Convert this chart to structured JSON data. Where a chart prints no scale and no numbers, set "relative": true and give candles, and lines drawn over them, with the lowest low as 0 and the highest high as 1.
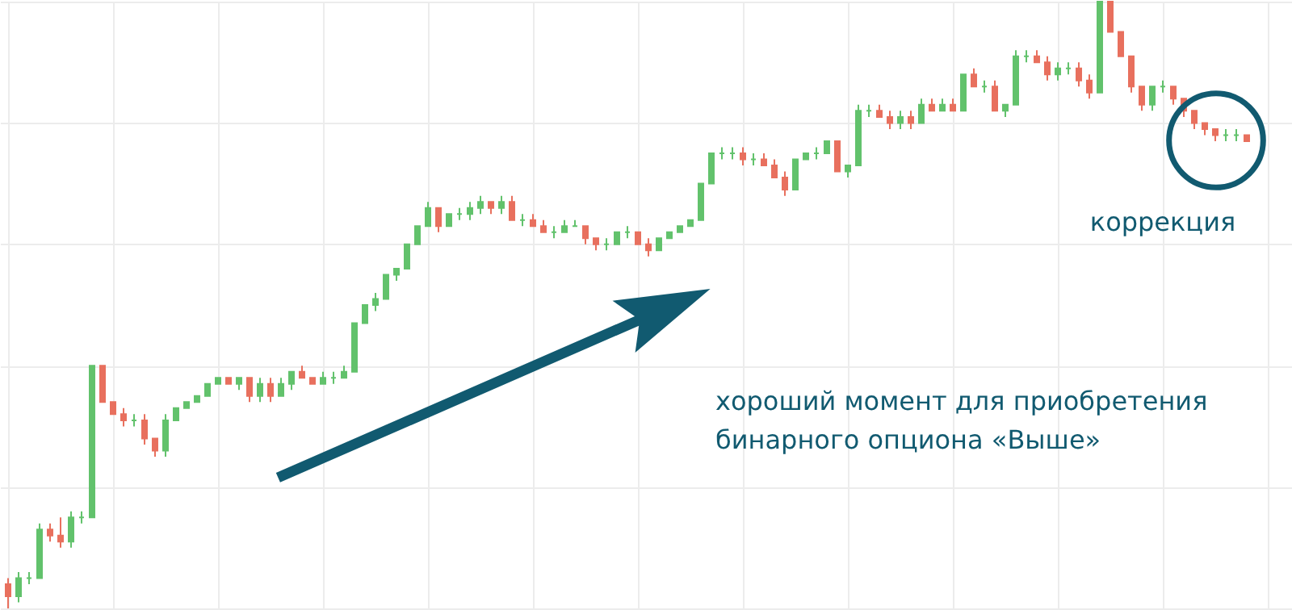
{
  "chart_data": {
    "type": "candlestick",
    "relative": true,
    "grid": true,
    "colors": [
      "#e8705e",
      "#62c26c",
      "#62c26c",
      "#62c26c",
      "#e8705e",
      "#e8705e",
      "#62c26c",
      "#62c26c",
      "#62c26c",
      "#e8705e",
      "#e8705e",
      "#e8705e",
      "#62c26c",
      "#e8705e",
      "#e8705e",
      "#62c26c",
      "#62c26c",
      "#62c26c",
      "#62c26c",
      "#62c26c",
      "#62c26c",
      "#e8705e",
      "#62c26c",
      "#e8705e",
      "#62c26c",
      "#e8705e",
      "#62c26c",
      "#62c26c",
      "#e8705e",
      "#e8705e",
      "#62c26c",
      "#62c26c",
      "#62c26c",
      "#62c26c",
      "#62c26c",
      "#62c26c",
      "#62c26c",
      "#62c26c",
      "#62c26c",
      "#62c26c",
      "#62c26c",
      "#e8705e",
      "#62c26c",
      "#62c26c",
      "#62c26c",
      "#62c26c",
      "#e8705e",
      "#62c26c",
      "#e8705e",
      "#62c26c",
      "#e8705e",
      "#e8705e",
      "#62c26c",
      "#62c26c",
      "#62c26c",
      "#e8705e",
      "#e8705e",
      "#62c26c",
      "#62c26c",
      "#62c26c",
      "#e8705e",
      "#e8705e",
      "#62c26c",
      "#62c26c",
      "#62c26c",
      "#62c26c",
      "#62c26c",
      "#62c26c",
      "#62c26c",
      "#62c26c",
      "#e8705e",
      "#62c26c",
      "#e8705e",
      "#e8705e",
      "#e8705e",
      "#62c26c",
      "#62c26c",
      "#62c26c",
      "#62c26c",
      "#e8705e",
      "#62c26c",
      "#62c26c",
      "#62c26c",
      "#e8705e",
      "#e8705e",
      "#62c26c",
      "#e8705e",
      "#62c26c",
      "#e8705e",
      "#62c26c",
      "#e8705e",
      "#62c26c",
      "#e8705e",
      "#62c26c",
      "#e8705e",
      "#62c26c",
      "#62c26c",
      "#62c26c",
      "#e8705e",
      "#e8705e",
      "#62c26c",
      "#62c26c",
      "#e8705e",
      "#e8705e",
      "#62c26c",
      "#e8705e",
      "#e8705e",
      "#e8705e",
      "#e8705e",
      "#62c26c",
      "#62c26c",
      "#e8705e",
      "#e8705e",
      "#e8705e",
      "#e8705e",
      "#e8705e",
      "#62c26c",
      "#62c26c",
      "#e8705e"
    ],
    "categories": [
      null,
      null,
      null,
      null,
      null,
      null,
      null,
      null,
      null,
      null,
      null,
      null,
      null,
      null,
      null,
      null,
      null,
      null,
      null,
      null,
      null,
      null,
      null,
      null,
      null,
      null,
      null,
      null,
      null,
      null,
      null,
      null,
      null,
      null,
      null,
      null,
      null,
      null,
      null,
      null,
      null,
      null,
      null,
      null,
      null,
      null,
      null,
      null,
      null,
      null,
      null,
      null,
      null,
      null,
      null,
      null,
      null,
      null,
      null,
      null,
      null,
      null,
      null,
      null,
      null,
      null,
      null,
      null,
      null,
      null,
      null,
      null,
      null,
      null,
      null,
      null,
      null,
      null,
      null,
      null,
      null,
      null,
      null,
      null,
      null,
      null,
      null,
      null,
      null,
      null,
      null,
      null,
      null,
      null,
      null,
      null,
      null,
      null,
      null,
      null,
      null,
      null,
      null,
      null,
      null,
      null,
      null,
      null,
      null,
      null,
      null,
      null,
      null,
      null,
      null,
      null,
      null,
      null,
      null
    ],
    "ohlc": [
      [
        0.04,
        0.05,
        0,
        0.02
      ],
      [
        0.02,
        0.06,
        0.01,
        0.05
      ],
      [
        0.05,
        0.06,
        0.04,
        0.05
      ],
      [
        0.05,
        0.14,
        0.05,
        0.13
      ],
      [
        0.13,
        0.14,
        0.11,
        0.12
      ],
      [
        0.12,
        0.15,
        0.1,
        0.11
      ],
      [
        0.11,
        0.16,
        0.1,
        0.15
      ],
      [
        0.15,
        0.16,
        0.14,
        0.15
      ],
      [
        0.15,
        0.4,
        0.15,
        0.4
      ],
      [
        0.4,
        0.4,
        0.34,
        0.34
      ],
      [
        0.34,
        0.34,
        0.32,
        0.32
      ],
      [
        0.32,
        0.33,
        0.3,
        0.31
      ],
      [
        0.31,
        0.32,
        0.3,
        0.31
      ],
      [
        0.31,
        0.32,
        0.27,
        0.28
      ],
      [
        0.28,
        0.28,
        0.25,
        0.26
      ],
      [
        0.26,
        0.32,
        0.25,
        0.31
      ],
      [
        0.31,
        0.33,
        0.31,
        0.33
      ],
      [
        0.33,
        0.34,
        0.33,
        0.34
      ],
      [
        0.34,
        0.35,
        0.34,
        0.35
      ],
      [
        0.35,
        0.37,
        0.35,
        0.37
      ],
      [
        0.37,
        0.38,
        0.37,
        0.38
      ],
      [
        0.38,
        0.38,
        0.37,
        0.37
      ],
      [
        0.37,
        0.38,
        0.36,
        0.38
      ],
      [
        0.38,
        0.38,
        0.34,
        0.35
      ],
      [
        0.35,
        0.38,
        0.34,
        0.37
      ],
      [
        0.37,
        0.38,
        0.34,
        0.35
      ],
      [
        0.35,
        0.38,
        0.35,
        0.37
      ],
      [
        0.37,
        0.39,
        0.36,
        0.39
      ],
      [
        0.39,
        0.4,
        0.38,
        0.38
      ],
      [
        0.38,
        0.38,
        0.37,
        0.37
      ],
      [
        0.37,
        0.39,
        0.37,
        0.38
      ],
      [
        0.38,
        0.39,
        0.37,
        0.38
      ],
      [
        0.38,
        0.4,
        0.38,
        0.39
      ],
      [
        0.39,
        0.47,
        0.39,
        0.47
      ],
      [
        0.47,
        0.5,
        0.47,
        0.5
      ],
      [
        0.5,
        0.52,
        0.49,
        0.51
      ],
      [
        0.51,
        0.55,
        0.51,
        0.55
      ],
      [
        0.55,
        0.56,
        0.54,
        0.56
      ],
      [
        0.56,
        0.6,
        0.56,
        0.6
      ],
      [
        0.6,
        0.63,
        0.6,
        0.63
      ],
      [
        0.63,
        0.67,
        0.63,
        0.66
      ],
      [
        0.66,
        0.66,
        0.62,
        0.63
      ],
      [
        0.63,
        0.65,
        0.63,
        0.65
      ],
      [
        0.65,
        0.66,
        0.64,
        0.65
      ],
      [
        0.65,
        0.67,
        0.64,
        0.66
      ],
      [
        0.66,
        0.68,
        0.65,
        0.67
      ],
      [
        0.67,
        0.67,
        0.65,
        0.66
      ],
      [
        0.66,
        0.68,
        0.65,
        0.67
      ],
      [
        0.67,
        0.68,
        0.64,
        0.64
      ],
      [
        0.64,
        0.65,
        0.63,
        0.64
      ],
      [
        0.64,
        0.65,
        0.63,
        0.63
      ],
      [
        0.63,
        0.64,
        0.62,
        0.62
      ],
      [
        0.62,
        0.63,
        0.61,
        0.62
      ],
      [
        0.62,
        0.64,
        0.62,
        0.63
      ],
      [
        0.63,
        0.64,
        0.63,
        0.63
      ],
      [
        0.63,
        0.63,
        0.6,
        0.61
      ],
      [
        0.61,
        0.61,
        0.59,
        0.6
      ],
      [
        0.6,
        0.61,
        0.59,
        0.6
      ],
      [
        0.6,
        0.62,
        0.6,
        0.62
      ],
      [
        0.62,
        0.63,
        0.61,
        0.62
      ],
      [
        0.62,
        0.62,
        0.6,
        0.6
      ],
      [
        0.6,
        0.61,
        0.58,
        0.59
      ],
      [
        0.59,
        0.61,
        0.59,
        0.61
      ],
      [
        0.61,
        0.62,
        0.61,
        0.62
      ],
      [
        0.62,
        0.63,
        0.62,
        0.63
      ],
      [
        0.63,
        0.64,
        0.63,
        0.64
      ],
      [
        0.64,
        0.7,
        0.64,
        0.7
      ],
      [
        0.7,
        0.75,
        0.7,
        0.75
      ],
      [
        0.75,
        0.76,
        0.74,
        0.75
      ],
      [
        0.75,
        0.76,
        0.74,
        0.75
      ],
      [
        0.75,
        0.76,
        0.73,
        0.74
      ],
      [
        0.74,
        0.75,
        0.73,
        0.74
      ],
      [
        0.74,
        0.75,
        0.73,
        0.73
      ],
      [
        0.73,
        0.74,
        0.71,
        0.71
      ],
      [
        0.71,
        0.72,
        0.68,
        0.69
      ],
      [
        0.69,
        0.74,
        0.69,
        0.74
      ],
      [
        0.74,
        0.75,
        0.74,
        0.75
      ],
      [
        0.75,
        0.76,
        0.74,
        0.75
      ],
      [
        0.75,
        0.77,
        0.75,
        0.77
      ],
      [
        0.77,
        0.77,
        0.72,
        0.72
      ],
      [
        0.72,
        0.73,
        0.71,
        0.73
      ],
      [
        0.73,
        0.83,
        0.73,
        0.82
      ],
      [
        0.82,
        0.83,
        0.81,
        0.82
      ],
      [
        0.82,
        0.83,
        0.81,
        0.81
      ],
      [
        0.81,
        0.82,
        0.79,
        0.8
      ],
      [
        0.8,
        0.82,
        0.79,
        0.81
      ],
      [
        0.81,
        0.82,
        0.79,
        0.8
      ],
      [
        0.8,
        0.84,
        0.8,
        0.83
      ],
      [
        0.83,
        0.84,
        0.82,
        0.82
      ],
      [
        0.82,
        0.84,
        0.82,
        0.83
      ],
      [
        0.83,
        0.84,
        0.82,
        0.82
      ],
      [
        0.82,
        0.88,
        0.82,
        0.88
      ],
      [
        0.88,
        0.89,
        0.86,
        0.86
      ],
      [
        0.86,
        0.87,
        0.85,
        0.86
      ],
      [
        0.86,
        0.87,
        0.82,
        0.82
      ],
      [
        0.82,
        0.83,
        0.81,
        0.83
      ],
      [
        0.83,
        0.92,
        0.83,
        0.91
      ],
      [
        0.91,
        0.92,
        0.9,
        0.91
      ],
      [
        0.91,
        0.92,
        0.9,
        0.9
      ],
      [
        0.9,
        0.91,
        0.87,
        0.88
      ],
      [
        0.88,
        0.9,
        0.87,
        0.89
      ],
      [
        0.89,
        0.9,
        0.88,
        0.89
      ],
      [
        0.89,
        0.9,
        0.86,
        0.87
      ],
      [
        0.87,
        0.88,
        0.84,
        0.85
      ],
      [
        0.85,
        1,
        0.85,
        1
      ],
      [
        1,
        1,
        0.95,
        0.95
      ],
      [
        0.95,
        0.95,
        0.91,
        0.91
      ],
      [
        0.91,
        0.91,
        0.85,
        0.86
      ],
      [
        0.86,
        0.86,
        0.82,
        0.83
      ],
      [
        0.83,
        0.86,
        0.82,
        0.86
      ],
      [
        0.86,
        0.87,
        0.85,
        0.86
      ],
      [
        0.86,
        0.86,
        0.83,
        0.84
      ],
      [
        0.84,
        0.84,
        0.81,
        0.82
      ],
      [
        0.82,
        0.82,
        0.79,
        0.8
      ],
      [
        0.8,
        0.8,
        0.78,
        0.79
      ],
      [
        0.79,
        0.79,
        0.77,
        0.78
      ],
      [
        0.78,
        0.79,
        0.77,
        0.78
      ],
      [
        0.78,
        0.79,
        0.77,
        0.78
      ],
      [
        0.78,
        0.78,
        0.77,
        0.77
      ]
    ],
    "annotations": [
      "коррекция",
      "хороший момент для приобретения",
      "бинарного опциона «Выше»"
    ]
  }
}
